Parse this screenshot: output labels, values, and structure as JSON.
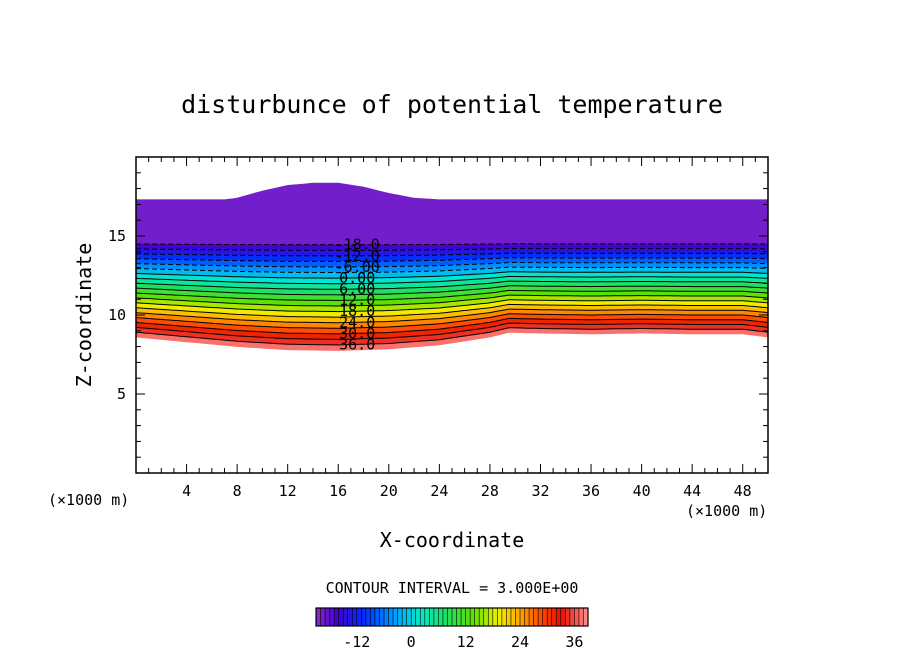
{
  "chart_data": {
    "type": "contour",
    "title": "disturbunce of potential temperature",
    "xlabel": "X-coordinate",
    "ylabel": "Z-coordinate",
    "x_unit_left": "(×1000 m)",
    "x_unit_right": "(×1000 m)",
    "xlim": [
      0,
      50
    ],
    "ylim": [
      0,
      20
    ],
    "x_ticks": [
      4,
      8,
      12,
      16,
      20,
      24,
      28,
      32,
      36,
      40,
      44,
      48
    ],
    "y_ticks": [
      5,
      10,
      15
    ],
    "contour_interval_text": "CONTOUR INTERVAL = 3.000E+00",
    "contour_interval": 3.0,
    "value_range": [
      -21,
      39
    ],
    "negative_contours_dashed": true,
    "contour_labels": [
      "-18.0",
      "-12.0",
      "-6.00",
      "0.00",
      "6.00",
      "12.0",
      "18.0",
      "24.0",
      "30.0",
      "36.0"
    ],
    "contour_label_values": [
      -18,
      -12,
      -6,
      0,
      6,
      12,
      18,
      24,
      30,
      36
    ],
    "colorbar_ticks": [
      "-12",
      "0",
      "12",
      "24",
      "36"
    ],
    "colorbar_tick_values": [
      -12,
      0,
      12,
      24,
      36
    ],
    "colorbar_range": [
      -21,
      39
    ],
    "bottom_boundary_profile": {
      "x": [
        0,
        4,
        8,
        12,
        16,
        20,
        24,
        28,
        29.5,
        32,
        36,
        40,
        44,
        48,
        50
      ],
      "z": [
        8.6,
        8.3,
        8.0,
        7.8,
        7.75,
        7.85,
        8.1,
        8.6,
        8.9,
        8.85,
        8.8,
        8.85,
        8.8,
        8.8,
        8.6
      ]
    },
    "top_boundary_profile": {
      "x": [
        0,
        7,
        8,
        10,
        12,
        14,
        16,
        18,
        20,
        22,
        24,
        50
      ],
      "z": [
        17.3,
        17.3,
        17.4,
        17.85,
        18.2,
        18.35,
        18.35,
        18.1,
        17.7,
        17.4,
        17.3,
        17.3
      ]
    }
  }
}
